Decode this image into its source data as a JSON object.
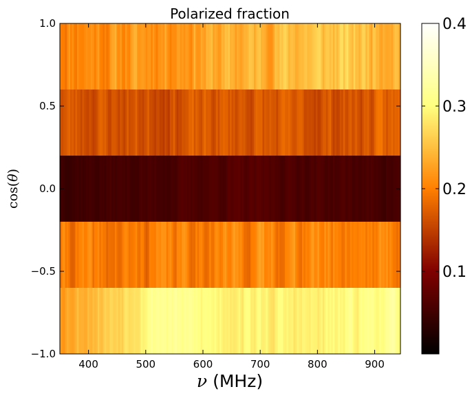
{
  "chart_data": {
    "type": "heatmap",
    "title": "Polarized fraction",
    "xlabel": "ν (MHz)",
    "xlabel_symbol": "ν",
    "xlabel_unit": "(MHz)",
    "ylabel": "cos(θ)",
    "ylabel_func": "cos(",
    "ylabel_symbol": "θ",
    "ylabel_close": ")",
    "xlim": [
      350,
      945
    ],
    "ylim": [
      -1.0,
      1.0
    ],
    "x_ticks": [
      400,
      500,
      600,
      700,
      800,
      900
    ],
    "x_tick_labels": [
      "400",
      "500",
      "600",
      "700",
      "800",
      "900"
    ],
    "y_ticks": [
      -1.0,
      -0.5,
      0.0,
      0.5,
      1.0
    ],
    "y_tick_labels": [
      "−1.0",
      "−0.5",
      "0.0",
      "0.5",
      "1.0"
    ],
    "colormap": "afmhot",
    "color_range": [
      0.0,
      0.4
    ],
    "colorbar_ticks": [
      0.1,
      0.2,
      0.3,
      0.4
    ],
    "colorbar_tick_labels": [
      "0.1",
      "0.2",
      "0.3",
      "0.4"
    ],
    "rows": [
      {
        "y_range": [
          0.6,
          1.0
        ],
        "base": [
          [
            350,
            0.21
          ],
          [
            450,
            0.215
          ],
          [
            550,
            0.225
          ],
          [
            650,
            0.235
          ],
          [
            750,
            0.25
          ],
          [
            850,
            0.255
          ],
          [
            945,
            0.25
          ]
        ],
        "noise": 0.018,
        "seed": 11
      },
      {
        "y_range": [
          0.2,
          0.6
        ],
        "base": [
          [
            350,
            0.17
          ],
          [
            450,
            0.165
          ],
          [
            550,
            0.165
          ],
          [
            650,
            0.17
          ],
          [
            750,
            0.165
          ],
          [
            850,
            0.165
          ],
          [
            945,
            0.175
          ]
        ],
        "noise": 0.014,
        "seed": 23
      },
      {
        "y_range": [
          -0.2,
          0.2
        ],
        "base": [
          [
            350,
            0.05
          ],
          [
            500,
            0.055
          ],
          [
            650,
            0.065
          ],
          [
            800,
            0.06
          ],
          [
            945,
            0.055
          ]
        ],
        "noise": 0.006,
        "seed": 37
      },
      {
        "y_range": [
          -0.6,
          -0.2
        ],
        "base": [
          [
            350,
            0.195
          ],
          [
            450,
            0.19
          ],
          [
            550,
            0.2
          ],
          [
            650,
            0.205
          ],
          [
            750,
            0.205
          ],
          [
            850,
            0.205
          ],
          [
            945,
            0.205
          ]
        ],
        "noise": 0.016,
        "seed": 41
      },
      {
        "y_range": [
          -1.0,
          -0.6
        ],
        "base": [
          [
            350,
            0.23
          ],
          [
            450,
            0.27
          ],
          [
            520,
            0.32
          ],
          [
            600,
            0.3
          ],
          [
            700,
            0.29
          ],
          [
            800,
            0.285
          ],
          [
            900,
            0.31
          ],
          [
            945,
            0.31
          ]
        ],
        "noise": 0.012,
        "seed": 53
      }
    ],
    "colors": {
      "axis": "#000000",
      "background": "#ffffff"
    }
  }
}
